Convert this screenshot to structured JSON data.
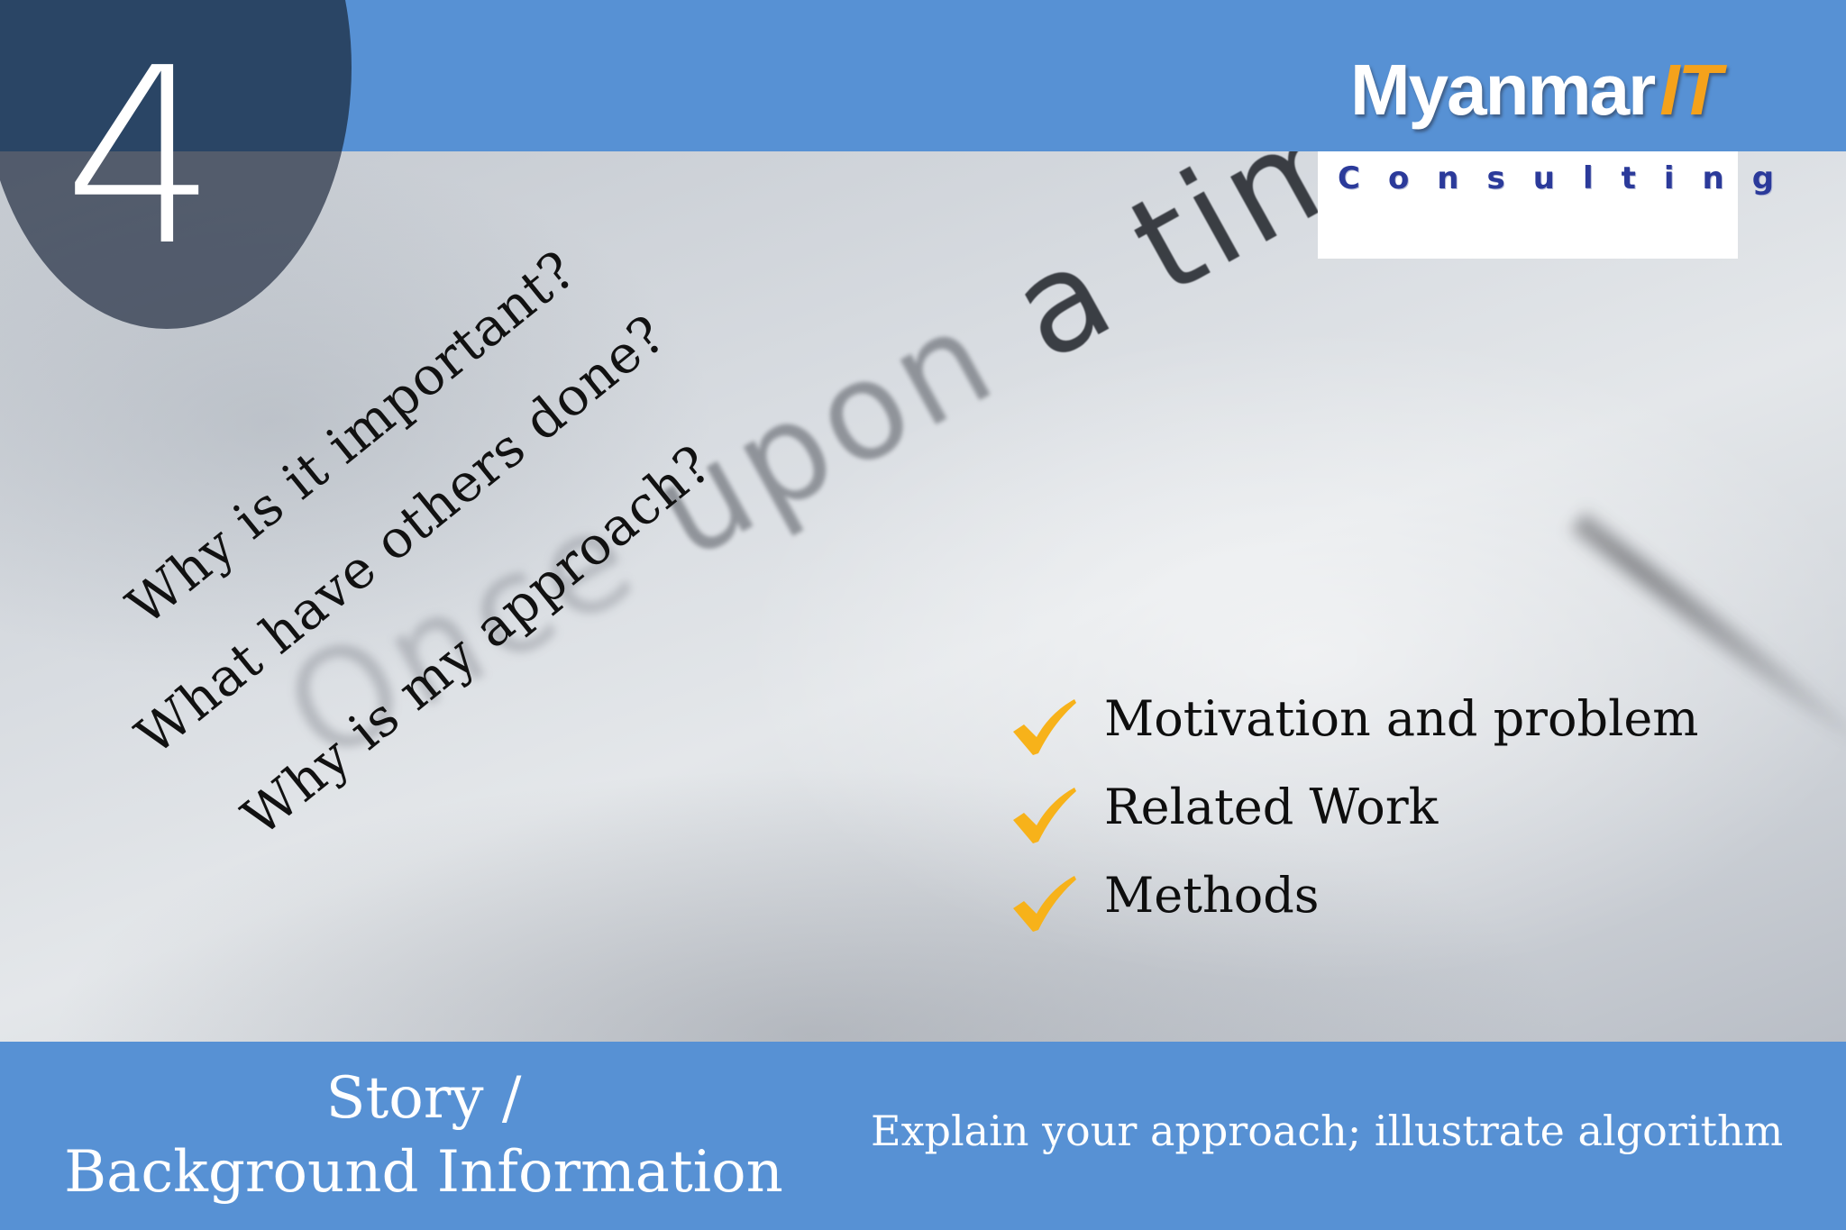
{
  "slide": {
    "number": "4",
    "title_line1": "Story /",
    "title_line2": "Background Information",
    "subtitle": "Explain your approach; illustrate algorithm"
  },
  "logo": {
    "main": "Myanmar",
    "accent": "IT",
    "sub": "Consulting"
  },
  "photo": {
    "handwriting": "Once upon a time"
  },
  "questions": [
    "Why is it important?",
    "What have others done?",
    "Why is my approach?"
  ],
  "checklist": [
    "Motivation and problem",
    "Related Work",
    "Methods"
  ],
  "colors": {
    "bar_blue": "#5791d4",
    "circle_navy": "#2a4565",
    "check_orange": "#f7b21a",
    "logo_accent": "#f5a21b",
    "logo_sub": "#2b3a9a"
  }
}
